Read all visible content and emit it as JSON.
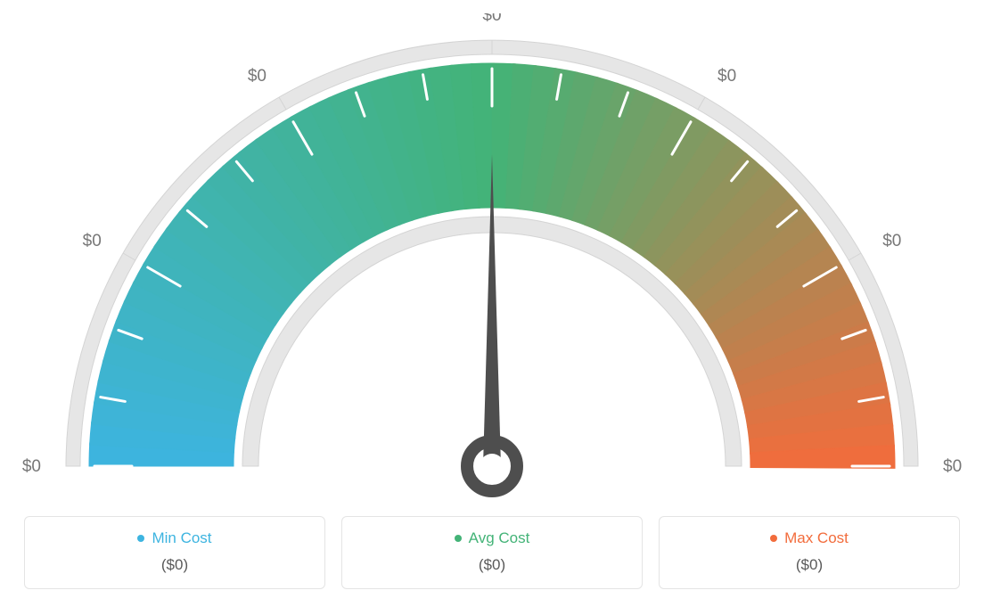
{
  "gauge": {
    "type": "gauge",
    "tick_labels": [
      "$0",
      "$0",
      "$0",
      "$0",
      "$0",
      "$0",
      "$0"
    ],
    "tick_label_color": "#777777",
    "tick_label_fontsize": 19,
    "outer_ring_color": "#e6e6e6",
    "outer_ring_stroke": "#d4d4d4",
    "inner_ring_color": "#e6e6e6",
    "inner_ring_stroke": "#d4d4d4",
    "arc_colors": {
      "start": "#3db4e0",
      "mid": "#43b377",
      "end": "#f26c3c"
    },
    "tick_mark_color": "#ffffff",
    "needle_color": "#4e4e4e",
    "needle_angle_deg": 90,
    "background_color": "#ffffff",
    "major_tick_count": 7,
    "tick_count": 19
  },
  "legend": {
    "items": [
      {
        "label": "Min Cost",
        "color": "#3db4e0",
        "value": "($0)"
      },
      {
        "label": "Avg Cost",
        "color": "#43b377",
        "value": "($0)"
      },
      {
        "label": "Max Cost",
        "color": "#f26c3c",
        "value": "($0)"
      }
    ]
  }
}
